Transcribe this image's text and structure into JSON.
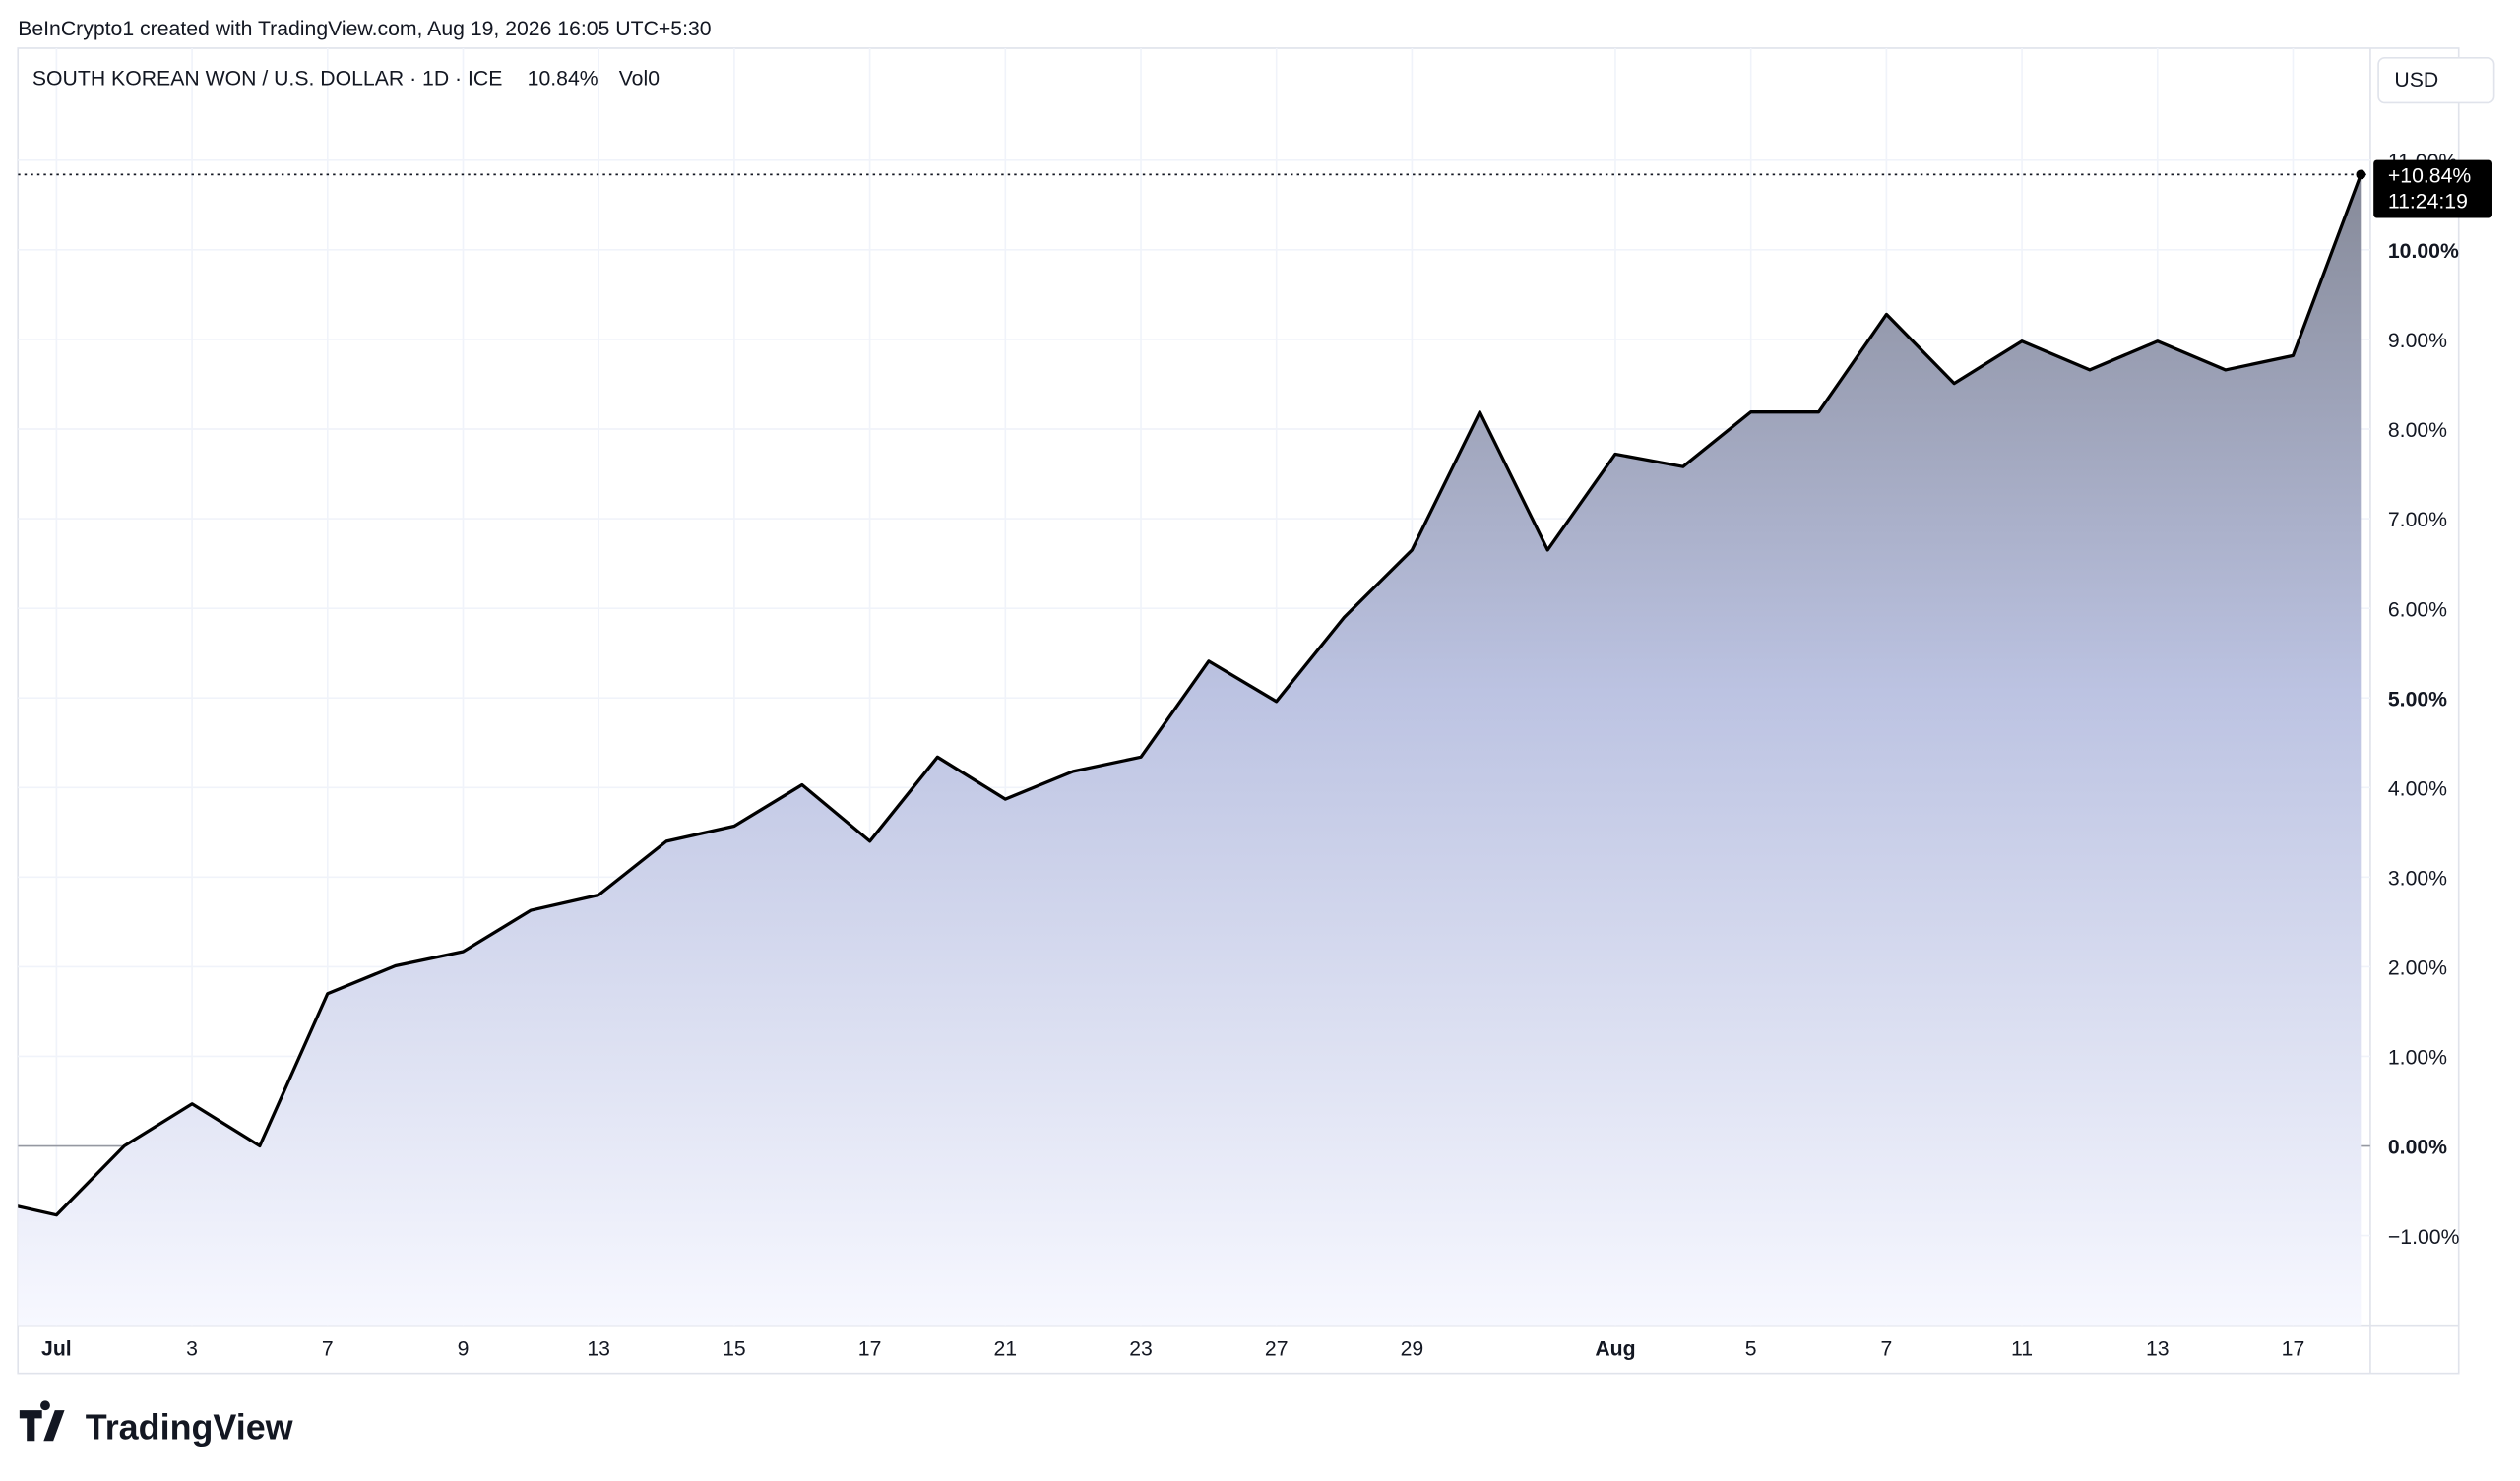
{
  "header": {
    "credit": "BeInCrypto1 created with TradingView.com, Aug 19, 2026 16:05 UTC+5:30"
  },
  "legend": {
    "symbol": "SOUTH KOREAN WON / U.S. DOLLAR · 1D · ICE",
    "last": "10.84%",
    "volume": "Vol0"
  },
  "currency": "USD",
  "last_label": {
    "price": "+10.84%",
    "countdown": "11:24:19"
  },
  "logo": "TradingView",
  "chart_data": {
    "type": "area",
    "categories": [
      null,
      "Jul",
      null,
      "3",
      null,
      "7",
      null,
      "9",
      null,
      "13",
      null,
      "15",
      null,
      "17",
      null,
      "21",
      null,
      "23",
      null,
      "27",
      null,
      "29",
      null,
      null,
      "Aug",
      null,
      "5",
      null,
      "7",
      null,
      "11",
      null,
      "13",
      null,
      "17",
      null
    ],
    "values": [
      -0.6,
      -0.77,
      0,
      0.47,
      0,
      1.7,
      2.01,
      2.17,
      2.63,
      2.8,
      3.4,
      3.57,
      4.03,
      3.4,
      4.34,
      3.87,
      4.18,
      4.34,
      5.41,
      4.96,
      5.9,
      6.65,
      8.19,
      6.65,
      7.72,
      7.58,
      8.19,
      8.19,
      9.28,
      8.51,
      8.98,
      8.66,
      8.98,
      8.66,
      8.82,
      10.84
    ],
    "color": "#000000",
    "ylim": [
      -2,
      12.25
    ],
    "yticks": [
      {
        "value": -1,
        "label": "−1.00%"
      },
      {
        "value": 0,
        "label": "0.00%"
      },
      {
        "value": 1,
        "label": "1.00%"
      },
      {
        "value": 2,
        "label": "2.00%"
      },
      {
        "value": 3,
        "label": "3.00%"
      },
      {
        "value": 4,
        "label": "4.00%"
      },
      {
        "value": 5,
        "label": "5.00%"
      },
      {
        "value": 6,
        "label": "6.00%"
      },
      {
        "value": 7,
        "label": "7.00%"
      },
      {
        "value": 8,
        "label": "8.00%"
      },
      {
        "value": 9,
        "label": "9.00%"
      },
      {
        "value": 10,
        "label": "10.00%"
      },
      {
        "value": 11,
        "label": "11.00%"
      }
    ],
    "grid": true
  }
}
